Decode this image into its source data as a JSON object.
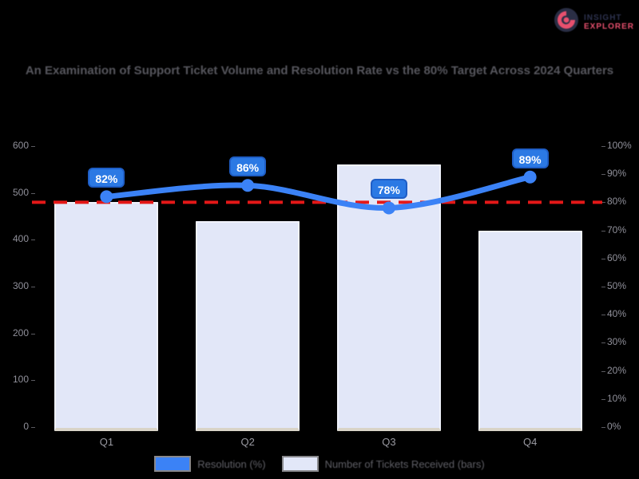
{
  "logo": {
    "icon": "aperture-logo-icon",
    "line1": "INSIGHT",
    "line2": "EXPLORER",
    "line1_color": "#2e3350",
    "line2_color": "#e8506e"
  },
  "title": "An Examination of Support Ticket Volume and Resolution Rate vs the 80% Target Across 2024 Quarters",
  "chart_data": {
    "type": "bar",
    "subtype": "bar-with-line-overlay",
    "categories": [
      "Q1",
      "Q2",
      "Q3",
      "Q4"
    ],
    "series": [
      {
        "name": "Resolution (%)",
        "type": "line",
        "axis": "right",
        "values": [
          82,
          86,
          78,
          89
        ],
        "point_labels": [
          "82%",
          "86%",
          "78%",
          "89%"
        ],
        "color": "#3b82f6"
      },
      {
        "name": "Number of Tickets Received (bars)",
        "type": "bar",
        "axis": "left",
        "values": [
          480,
          440,
          560,
          420
        ],
        "color": "#e2e7f8"
      }
    ],
    "left_axis": {
      "min": 0,
      "max": 600,
      "ticks": [
        "600",
        "500",
        "400",
        "300",
        "200",
        "100",
        "0"
      ]
    },
    "right_axis": {
      "min": 0,
      "max": 100,
      "ticks": [
        "100%",
        "90%",
        "80%",
        "70%",
        "60%",
        "50%",
        "40%",
        "30%",
        "20%",
        "10%",
        "0%"
      ]
    },
    "target_line": {
      "value": 80,
      "color": "#e41818",
      "style": "dashed"
    },
    "grid": false,
    "legend_position": "bottom",
    "background": "#000000"
  },
  "legend": {
    "items": [
      {
        "label": "Resolution (%)",
        "swatch_color": "#3b82f6"
      },
      {
        "label": "Number of Tickets Received (bars)",
        "swatch_color": "#e2e7f8"
      }
    ]
  },
  "colors": {
    "background": "#000000",
    "bar_fill": "#e2e7f8",
    "bar_border": "#f0f2fb",
    "bar_shadow": "#d9d4c8",
    "line_blue": "#3b82f6",
    "point_label_bg": "#2b79e4",
    "point_label_border": "#1f5ec6",
    "target_red": "#e41818",
    "title_text": "#56565d",
    "axis_text": "#90909a"
  }
}
